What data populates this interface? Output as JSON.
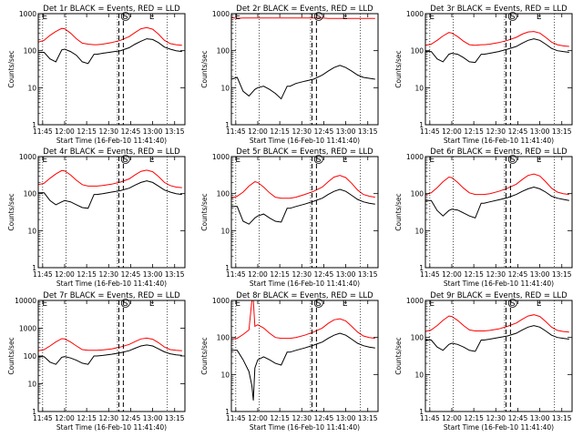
{
  "figure": {
    "colors": {
      "events": "#000000",
      "lld": "#ff0000",
      "axes": "#000000",
      "background": "#ffffff"
    },
    "x_tick_labels": [
      "11:45",
      "12:00",
      "12:15",
      "12:30",
      "12:45",
      "13:00",
      "13:15"
    ],
    "xlabel": "Start Time (16-Feb-10 11:41:40)",
    "ylabel": "Counts/sec",
    "marker_labels": {
      "entry": "E",
      "saa": "S"
    }
  },
  "chart_data": [
    {
      "type": "line",
      "title": "Det 1r BLACK = Events, RED = LLD",
      "y_scale": "log",
      "xlim_minutes_from_start": [
        0,
        100
      ],
      "ylim": [
        1,
        1000
      ],
      "y_tick_labels": [
        "1",
        "10",
        "100",
        "1000"
      ],
      "x": [
        0,
        4,
        8,
        12,
        16,
        18,
        22,
        26,
        30,
        34,
        38,
        40,
        44,
        50,
        56,
        62,
        66,
        70,
        74,
        78,
        82,
        86,
        90,
        94,
        98
      ],
      "series": [
        {
          "name": "Events",
          "values": [
            90,
            90,
            60,
            50,
            105,
            110,
            95,
            75,
            50,
            45,
            80,
            80,
            85,
            92,
            100,
            120,
            150,
            180,
            210,
            200,
            165,
            125,
            110,
            100,
            95
          ]
        },
        {
          "name": "LLD",
          "values": [
            170,
            190,
            260,
            330,
            400,
            390,
            300,
            210,
            160,
            150,
            145,
            145,
            150,
            165,
            190,
            240,
            310,
            390,
            420,
            380,
            280,
            190,
            155,
            145,
            140
          ]
        }
      ],
      "vertical_dotted_lines_minutes": [
        3,
        19,
        54,
        88
      ],
      "vertical_dashed_lines_minutes": [
        55,
        58
      ],
      "markers": [
        {
          "label": "E",
          "x_minutes": 2
        },
        {
          "label": "S",
          "x_minutes": 57
        },
        {
          "label": "E",
          "x_minutes": 75
        }
      ]
    },
    {
      "type": "line",
      "title": "Det 2r BLACK = Events, RED = LLD",
      "y_scale": "log",
      "xlim_minutes_from_start": [
        0,
        100
      ],
      "ylim": [
        1,
        1000
      ],
      "y_tick_labels": [
        "1",
        "10",
        "100",
        "1000"
      ],
      "x": [
        0,
        4,
        8,
        12,
        16,
        18,
        22,
        26,
        30,
        34,
        38,
        40,
        44,
        50,
        56,
        62,
        66,
        70,
        74,
        78,
        82,
        86,
        90,
        94,
        98
      ],
      "series": [
        {
          "name": "Events",
          "values": [
            17,
            19,
            8,
            6,
            9,
            10,
            11,
            9,
            7,
            5,
            11,
            11,
            13,
            15,
            17,
            22,
            28,
            35,
            40,
            35,
            28,
            22,
            19,
            18,
            17
          ]
        },
        {
          "name": "LLD",
          "values": [
            780,
            750,
            760,
            760,
            760,
            760,
            760,
            760,
            760,
            760,
            760,
            760,
            760,
            760,
            760,
            760,
            740,
            740,
            740,
            740,
            740,
            740,
            740,
            740,
            740
          ]
        }
      ],
      "vertical_dotted_lines_minutes": [
        3,
        19,
        54,
        88
      ],
      "vertical_dashed_lines_minutes": [
        55,
        58
      ],
      "markers": [
        {
          "label": "E",
          "x_minutes": 2
        },
        {
          "label": "S",
          "x_minutes": 57
        },
        {
          "label": "E",
          "x_minutes": 75
        }
      ]
    },
    {
      "type": "line",
      "title": "Det 3r BLACK = Events, RED = LLD",
      "y_scale": "log",
      "xlim_minutes_from_start": [
        0,
        100
      ],
      "ylim": [
        1,
        1000
      ],
      "y_tick_labels": [
        "1",
        "10",
        "100",
        "1000"
      ],
      "x": [
        0,
        4,
        8,
        12,
        16,
        18,
        22,
        26,
        30,
        34,
        38,
        40,
        44,
        50,
        56,
        62,
        66,
        70,
        74,
        78,
        82,
        86,
        90,
        94,
        98
      ],
      "series": [
        {
          "name": "Events",
          "values": [
            95,
            95,
            60,
            50,
            80,
            85,
            80,
            65,
            50,
            48,
            80,
            80,
            85,
            95,
            110,
            130,
            160,
            190,
            210,
            190,
            150,
            115,
            100,
            95,
            90
          ]
        },
        {
          "name": "LLD",
          "values": [
            140,
            150,
            190,
            250,
            310,
            300,
            240,
            180,
            145,
            140,
            145,
            145,
            150,
            165,
            190,
            230,
            280,
            320,
            330,
            300,
            230,
            170,
            145,
            135,
            130
          ]
        }
      ],
      "vertical_dotted_lines_minutes": [
        3,
        19,
        54,
        88
      ],
      "vertical_dashed_lines_minutes": [
        55,
        58
      ],
      "markers": [
        {
          "label": "E",
          "x_minutes": 2
        },
        {
          "label": "S",
          "x_minutes": 57
        },
        {
          "label": "E",
          "x_minutes": 75
        }
      ]
    },
    {
      "type": "line",
      "title": "Det 4r BLACK = Events, RED = LLD",
      "y_scale": "log",
      "xlim_minutes_from_start": [
        0,
        100
      ],
      "ylim": [
        1,
        1000
      ],
      "y_tick_labels": [
        "1",
        "10",
        "100",
        "1000"
      ],
      "x": [
        0,
        4,
        8,
        12,
        16,
        18,
        22,
        26,
        30,
        34,
        38,
        40,
        44,
        50,
        56,
        62,
        66,
        70,
        74,
        78,
        82,
        86,
        90,
        94,
        98
      ],
      "series": [
        {
          "name": "Events",
          "values": [
            105,
            105,
            65,
            50,
            60,
            65,
            60,
            50,
            42,
            40,
            95,
            95,
            100,
            110,
            120,
            140,
            170,
            200,
            220,
            200,
            160,
            125,
            110,
            100,
            95
          ]
        },
        {
          "name": "LLD",
          "values": [
            175,
            190,
            260,
            340,
            420,
            410,
            320,
            230,
            175,
            160,
            160,
            160,
            165,
            180,
            205,
            250,
            320,
            400,
            430,
            390,
            290,
            200,
            165,
            150,
            145
          ]
        }
      ],
      "vertical_dotted_lines_minutes": [
        3,
        19,
        54,
        88
      ],
      "vertical_dashed_lines_minutes": [
        55,
        58
      ],
      "markers": [
        {
          "label": "E",
          "x_minutes": 2
        },
        {
          "label": "S",
          "x_minutes": 57
        },
        {
          "label": "E",
          "x_minutes": 75
        }
      ]
    },
    {
      "type": "line",
      "title": "Det 5r BLACK = Events, RED = LLD",
      "y_scale": "log",
      "xlim_minutes_from_start": [
        0,
        100
      ],
      "ylim": [
        1,
        1000
      ],
      "y_tick_labels": [
        "1",
        "10",
        "100",
        "1000"
      ],
      "x": [
        0,
        4,
        8,
        12,
        16,
        18,
        22,
        26,
        30,
        34,
        38,
        40,
        44,
        50,
        56,
        62,
        66,
        70,
        74,
        78,
        82,
        86,
        90,
        94,
        98
      ],
      "series": [
        {
          "name": "Events",
          "values": [
            45,
            45,
            18,
            15,
            22,
            25,
            28,
            22,
            18,
            17,
            40,
            40,
            45,
            52,
            62,
            75,
            95,
            115,
            130,
            115,
            90,
            70,
            60,
            55,
            52
          ]
        },
        {
          "name": "LLD",
          "values": [
            75,
            85,
            110,
            160,
            210,
            200,
            150,
            105,
            80,
            75,
            75,
            75,
            80,
            95,
            115,
            150,
            210,
            280,
            310,
            270,
            190,
            125,
            95,
            85,
            80
          ]
        }
      ],
      "vertical_dotted_lines_minutes": [
        3,
        19,
        54,
        88
      ],
      "vertical_dashed_lines_minutes": [
        55,
        58
      ],
      "markers": [
        {
          "label": "E",
          "x_minutes": 2
        },
        {
          "label": "S",
          "x_minutes": 57
        },
        {
          "label": "E",
          "x_minutes": 75
        }
      ]
    },
    {
      "type": "line",
      "title": "Det 6r BLACK = Events, RED = LLD",
      "y_scale": "log",
      "xlim_minutes_from_start": [
        0,
        100
      ],
      "ylim": [
        1,
        1000
      ],
      "y_tick_labels": [
        "1",
        "10",
        "100",
        "1000"
      ],
      "x": [
        0,
        4,
        8,
        12,
        16,
        18,
        22,
        26,
        30,
        34,
        38,
        40,
        44,
        50,
        56,
        62,
        66,
        70,
        74,
        78,
        82,
        86,
        90,
        94,
        98
      ],
      "series": [
        {
          "name": "Events",
          "values": [
            65,
            65,
            35,
            25,
            35,
            38,
            36,
            30,
            25,
            22,
            55,
            55,
            60,
            68,
            78,
            95,
            115,
            135,
            150,
            135,
            110,
            85,
            75,
            70,
            65
          ]
        },
        {
          "name": "LLD",
          "values": [
            95,
            105,
            145,
            210,
            280,
            270,
            200,
            140,
            105,
            95,
            95,
            95,
            100,
            115,
            140,
            180,
            240,
            310,
            340,
            300,
            210,
            140,
            110,
            100,
            95
          ]
        }
      ],
      "vertical_dotted_lines_minutes": [
        3,
        19,
        54,
        88
      ],
      "vertical_dashed_lines_minutes": [
        55,
        58
      ],
      "markers": [
        {
          "label": "E",
          "x_minutes": 2
        },
        {
          "label": "S",
          "x_minutes": 57
        },
        {
          "label": "E",
          "x_minutes": 75
        }
      ]
    },
    {
      "type": "line",
      "title": "Det 7r BLACK = Events, RED = LLD",
      "y_scale": "log",
      "xlim_minutes_from_start": [
        0,
        100
      ],
      "ylim": [
        1,
        10000
      ],
      "y_tick_labels": [
        "1",
        "10",
        "100",
        "1000",
        "10000"
      ],
      "x": [
        0,
        4,
        8,
        12,
        16,
        18,
        22,
        26,
        30,
        34,
        38,
        40,
        44,
        50,
        56,
        62,
        66,
        70,
        74,
        78,
        82,
        86,
        90,
        94,
        98
      ],
      "series": [
        {
          "name": "Events",
          "values": [
            95,
            95,
            60,
            50,
            90,
            95,
            85,
            70,
            55,
            50,
            100,
            100,
            105,
            115,
            130,
            155,
            190,
            230,
            250,
            230,
            180,
            140,
            120,
            110,
            105
          ]
        },
        {
          "name": "LLD",
          "values": [
            155,
            170,
            230,
            320,
            420,
            410,
            320,
            230,
            170,
            160,
            160,
            160,
            165,
            180,
            210,
            260,
            330,
            410,
            440,
            400,
            300,
            210,
            170,
            160,
            155
          ]
        }
      ],
      "vertical_dotted_lines_minutes": [
        3,
        19,
        54,
        88
      ],
      "vertical_dashed_lines_minutes": [
        55,
        58
      ],
      "markers": [
        {
          "label": "E",
          "x_minutes": 2
        },
        {
          "label": "S",
          "x_minutes": 57
        },
        {
          "label": "E",
          "x_minutes": 75
        }
      ]
    },
    {
      "type": "line",
      "title": "Det 8r BLACK = Events, RED = LLD",
      "y_scale": "log",
      "xlim_minutes_from_start": [
        0,
        100
      ],
      "ylim": [
        1,
        1000
      ],
      "y_tick_labels": [
        "1",
        "10",
        "100",
        "1000"
      ],
      "x": [
        0,
        4,
        8,
        12,
        14,
        15,
        16,
        18,
        22,
        26,
        30,
        34,
        38,
        40,
        44,
        50,
        56,
        62,
        66,
        70,
        74,
        78,
        82,
        86,
        90,
        94,
        98
      ],
      "series": [
        {
          "name": "Events",
          "values": [
            45,
            45,
            25,
            12,
            5,
            2,
            15,
            25,
            30,
            25,
            20,
            18,
            40,
            40,
            45,
            52,
            62,
            75,
            95,
            115,
            130,
            115,
            90,
            70,
            60,
            55,
            52
          ]
        },
        {
          "name": "LLD",
          "values": [
            90,
            95,
            120,
            160,
            1000,
            1000,
            200,
            220,
            180,
            130,
            100,
            95,
            95,
            95,
            100,
            115,
            140,
            180,
            240,
            300,
            320,
            280,
            200,
            140,
            110,
            100,
            95
          ]
        }
      ],
      "vertical_dotted_lines_minutes": [
        3,
        19,
        54,
        88
      ],
      "vertical_dashed_lines_minutes": [
        55,
        58
      ],
      "markers": [
        {
          "label": "E",
          "x_minutes": 2
        },
        {
          "label": "S",
          "x_minutes": 57
        },
        {
          "label": "E",
          "x_minutes": 75
        }
      ]
    },
    {
      "type": "line",
      "title": "Det 9r BLACK = Events, RED = LLD",
      "y_scale": "log",
      "xlim_minutes_from_start": [
        0,
        100
      ],
      "ylim": [
        1,
        1000
      ],
      "y_tick_labels": [
        "1",
        "10",
        "100",
        "1000"
      ],
      "x": [
        0,
        4,
        8,
        12,
        16,
        18,
        22,
        26,
        30,
        34,
        38,
        40,
        44,
        50,
        56,
        62,
        66,
        70,
        74,
        78,
        82,
        86,
        90,
        94,
        98
      ],
      "series": [
        {
          "name": "Events",
          "values": [
            85,
            85,
            55,
            45,
            65,
            70,
            65,
            55,
            45,
            42,
            85,
            85,
            90,
            100,
            110,
            130,
            160,
            190,
            210,
            190,
            150,
            115,
            100,
            95,
            90
          ]
        },
        {
          "name": "LLD",
          "values": [
            145,
            160,
            210,
            290,
            380,
            370,
            290,
            210,
            160,
            150,
            150,
            150,
            155,
            170,
            200,
            245,
            310,
            380,
            410,
            370,
            270,
            190,
            155,
            145,
            140
          ]
        }
      ],
      "vertical_dotted_lines_minutes": [
        3,
        19,
        54,
        88
      ],
      "vertical_dashed_lines_minutes": [
        55,
        58
      ],
      "markers": [
        {
          "label": "E",
          "x_minutes": 2
        },
        {
          "label": "S",
          "x_minutes": 57
        },
        {
          "label": "E",
          "x_minutes": 75
        }
      ]
    }
  ]
}
